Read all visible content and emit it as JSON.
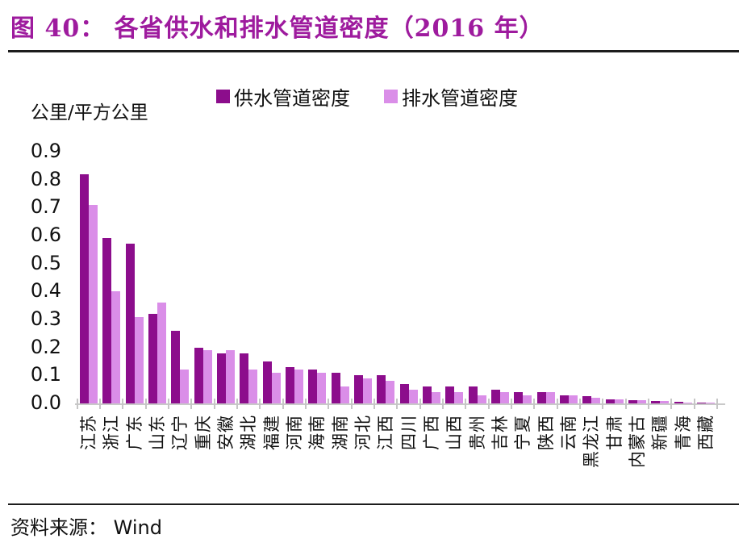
{
  "header": {
    "title": "图 40：  各省供水和排水管道密度（2016 年）"
  },
  "chart_data": {
    "type": "bar",
    "title": "各省供水和排水管道密度（2016年）",
    "unit_label": "公里/平方公里",
    "legend_position": "top",
    "grid": false,
    "ylim": [
      0,
      0.9
    ],
    "ytick_step": 0.1,
    "categories": [
      "江苏",
      "浙江",
      "广东",
      "山东",
      "辽宁",
      "重庆",
      "安徽",
      "湖北",
      "福建",
      "河南",
      "海南",
      "湖南",
      "河北",
      "江西",
      "四川",
      "广西",
      "山西",
      "贵州",
      "吉林",
      "宁夏",
      "陕西",
      "云南",
      "黑龙江",
      "甘肃",
      "内蒙古",
      "新疆",
      "青海",
      "西藏"
    ],
    "series": [
      {
        "name": "供水管道密度",
        "color": "#8C0D8C",
        "values": [
          0.82,
          0.59,
          0.57,
          0.32,
          0.26,
          0.2,
          0.18,
          0.18,
          0.15,
          0.13,
          0.12,
          0.11,
          0.1,
          0.1,
          0.07,
          0.06,
          0.06,
          0.06,
          0.05,
          0.04,
          0.04,
          0.03,
          0.025,
          0.015,
          0.012,
          0.008,
          0.005,
          0.002
        ]
      },
      {
        "name": "排水管道密度",
        "color": "#DA8EE8",
        "values": [
          0.71,
          0.4,
          0.31,
          0.36,
          0.12,
          0.19,
          0.19,
          0.12,
          0.11,
          0.12,
          0.11,
          0.06,
          0.09,
          0.08,
          0.05,
          0.04,
          0.04,
          0.03,
          0.04,
          0.03,
          0.04,
          0.03,
          0.02,
          0.015,
          0.012,
          0.008,
          0.004,
          0.002
        ]
      }
    ]
  },
  "footer": {
    "source_label": "资料来源：",
    "source_value": "Wind"
  },
  "colors": {
    "title": "#9E1B9E",
    "axis_gray": "#C9C9C9",
    "rule_black": "#1C1C1C",
    "text": "#111111"
  }
}
